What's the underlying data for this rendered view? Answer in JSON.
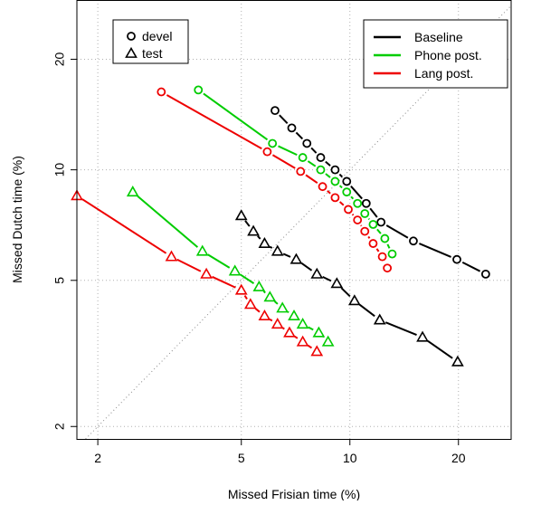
{
  "chart_data": {
    "type": "line",
    "title": "",
    "xlabel": "Missed Frisian time (%)",
    "ylabel": "Missed Dutch time (%)",
    "x_scale": "log",
    "y_scale": "log",
    "xlim": [
      1.75,
      28
    ],
    "ylim": [
      1.85,
      29
    ],
    "x_ticks": [
      2,
      5,
      10,
      20
    ],
    "y_ticks": [
      2,
      5,
      10,
      20
    ],
    "x_tick_labels": [
      "2",
      "5",
      "10",
      "20"
    ],
    "y_tick_labels": [
      "2",
      "5",
      "10",
      "20"
    ],
    "grid": true,
    "diagonal_reference": true,
    "legend_sets": {
      "title": "",
      "entries": [
        {
          "label": "devel",
          "marker": "circle"
        },
        {
          "label": "test",
          "marker": "triangle"
        }
      ],
      "position": "top-left"
    },
    "legend_systems": {
      "title": "",
      "entries": [
        {
          "label": "Baseline",
          "color": "#000000"
        },
        {
          "label": "Phone post.",
          "color": "#00cc00"
        },
        {
          "label": "Lang post.",
          "color": "#ee0000"
        }
      ],
      "position": "top-right"
    },
    "series": [
      {
        "name": "Baseline",
        "set": "devel",
        "marker": "circle",
        "color": "#000000",
        "dash": true,
        "x": [
          6.2,
          6.9,
          7.6,
          8.3,
          9.1,
          9.8,
          11.1,
          12.2,
          15.0,
          19.8,
          23.8
        ],
        "y": [
          14.5,
          13.0,
          11.8,
          10.8,
          10.0,
          9.3,
          8.1,
          7.2,
          6.4,
          5.7,
          5.2
        ]
      },
      {
        "name": "Phone post.",
        "set": "devel",
        "marker": "circle",
        "color": "#00cc00",
        "dash": true,
        "x": [
          3.8,
          6.1,
          7.4,
          8.3,
          9.1,
          9.8,
          10.5,
          11.0,
          11.6,
          12.5,
          13.1
        ],
        "y": [
          16.5,
          11.8,
          10.8,
          10.0,
          9.3,
          8.7,
          8.1,
          7.6,
          7.1,
          6.5,
          5.9
        ]
      },
      {
        "name": "Lang post.",
        "set": "devel",
        "marker": "circle",
        "color": "#ee0000",
        "dash": true,
        "x": [
          3.0,
          5.9,
          7.3,
          8.4,
          9.1,
          9.9,
          10.5,
          11.0,
          11.6,
          12.3,
          12.7
        ],
        "y": [
          16.3,
          11.2,
          9.9,
          9.0,
          8.4,
          7.8,
          7.3,
          6.8,
          6.3,
          5.8,
          5.4
        ]
      },
      {
        "name": "Baseline",
        "set": "test",
        "marker": "triangle",
        "color": "#000000",
        "dash": true,
        "x": [
          5.0,
          5.4,
          5.8,
          6.3,
          7.1,
          8.1,
          9.2,
          10.3,
          12.1,
          15.9,
          19.9
        ],
        "y": [
          7.5,
          6.8,
          6.3,
          6.0,
          5.7,
          5.2,
          4.9,
          4.4,
          3.9,
          3.5,
          3.0
        ]
      },
      {
        "name": "Phone post.",
        "set": "test",
        "marker": "triangle",
        "color": "#00cc00",
        "dash": true,
        "x": [
          2.5,
          3.9,
          4.8,
          5.6,
          6.0,
          6.5,
          7.0,
          7.4,
          8.2,
          8.7
        ],
        "y": [
          8.7,
          6.0,
          5.3,
          4.8,
          4.5,
          4.2,
          4.0,
          3.8,
          3.6,
          3.4
        ]
      },
      {
        "name": "Lang post.",
        "set": "test",
        "marker": "triangle",
        "color": "#ee0000",
        "dash": true,
        "x": [
          1.75,
          3.2,
          4.0,
          5.0,
          5.3,
          5.8,
          6.3,
          6.8,
          7.4,
          8.1
        ],
        "y": [
          8.5,
          5.8,
          5.2,
          4.7,
          4.3,
          4.0,
          3.8,
          3.6,
          3.4,
          3.2
        ]
      }
    ]
  }
}
